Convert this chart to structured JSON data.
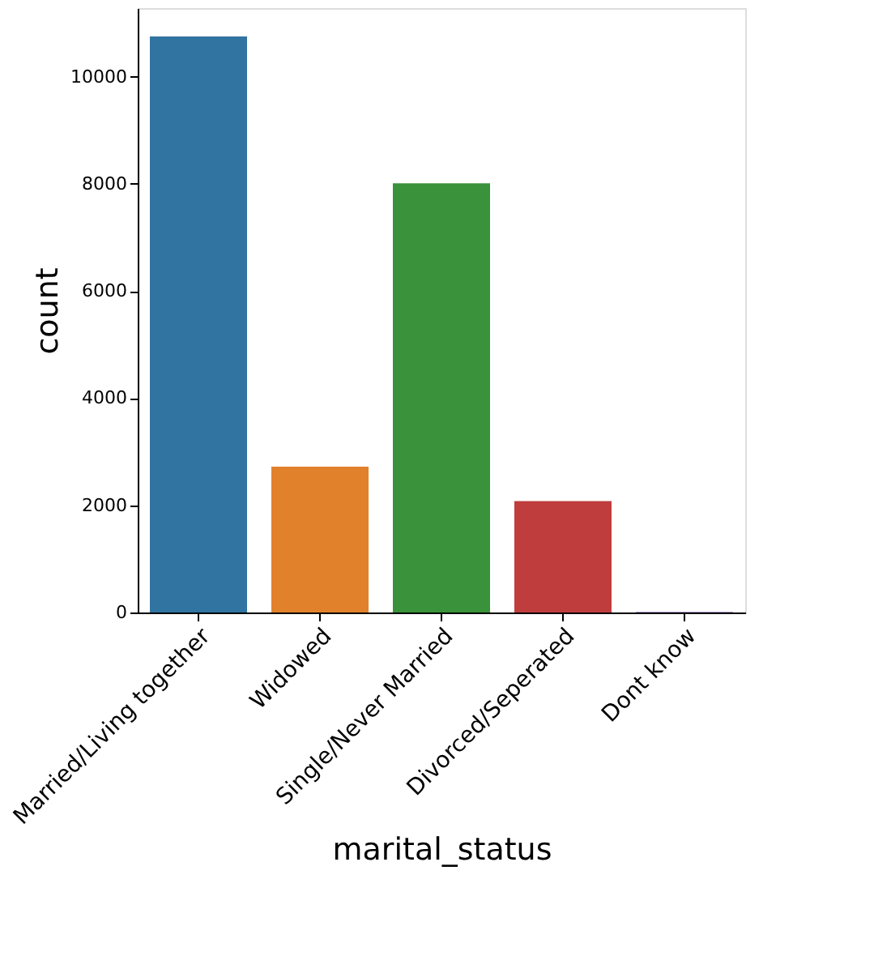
{
  "chart_data": {
    "type": "bar",
    "xlabel": "marital_status",
    "ylabel": "count",
    "categories": [
      "Married/Living together",
      "Widowed",
      "Single/Never Married",
      "Divorced/Seperated",
      "Dont know"
    ],
    "values": [
      10750,
      2720,
      8010,
      2080,
      10
    ],
    "colors": [
      "#3274a1",
      "#e1812c",
      "#3a923a",
      "#c03d3e",
      "#9372b2"
    ],
    "ylim": [
      0,
      11280
    ],
    "yticks": [
      0,
      2000,
      4000,
      6000,
      8000,
      10000
    ],
    "grid": false,
    "legend": false
  }
}
